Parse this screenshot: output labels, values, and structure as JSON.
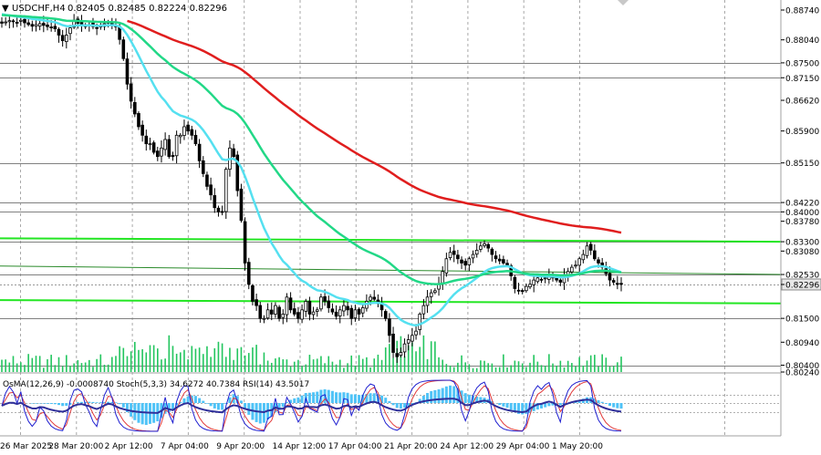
{
  "header": {
    "symbol": "USDCHF,H4",
    "ohlc": "0.82405 0.82485 0.82224 0.82296"
  },
  "indicator_label": "OsMA(12,26,9) -0.0008740  Stoch(5,3,3) 34.6272 40.7384  RSI(14) 43.5017",
  "colors": {
    "background": "#ffffff",
    "grid": "#a9a9a9",
    "candle": "#000000",
    "volume": "#22c55e",
    "ema_fast": "#55e0f0",
    "ema_mid": "#22d887",
    "ema_slow": "#e01e1e",
    "level_green": "#22e622",
    "osma": "#4fc3f7",
    "stoch_main": "#1f1fd0",
    "stoch_signal": "#e23b3b",
    "rsi": "#2f2f9a",
    "axis_text": "#000000"
  },
  "chart_data": {
    "type": "candlestick",
    "symbol": "USDCHF",
    "timeframe": "H4",
    "x_ticks": [
      "26 Mar 2025",
      "28 Mar 20:00",
      "2 Apr 12:00",
      "7 Apr 04:00",
      "9 Apr 20:00",
      "14 Apr 12:00",
      "17 Apr 04:00",
      "21 Apr 20:00",
      "24 Apr 12:00",
      "29 Apr 04:00",
      "1 May 20:00"
    ],
    "y_ticks": [
      "0.88740",
      "0.88040",
      "0.87500",
      "0.87150",
      "0.86620",
      "0.85900",
      "0.85150",
      "0.84220",
      "0.84000",
      "0.83780",
      "0.83300",
      "0.83080",
      "0.82530",
      "0.82296",
      "0.81500",
      "0.80940",
      "0.80400",
      "0.80240"
    ],
    "ylim": [
      0.8024,
      0.8874
    ],
    "horizontal_levels": [
      0.875,
      0.8715,
      0.8515,
      0.8422,
      0.84,
      0.833,
      0.8253,
      0.815,
      0.804
    ],
    "current_price": "0.82296",
    "close_series": [
      0.8843,
      0.8846,
      0.8849,
      0.8847,
      0.8845,
      0.885,
      0.8844,
      0.884,
      0.8836,
      0.884,
      0.8842,
      0.8838,
      0.8835,
      0.8833,
      0.883,
      0.8815,
      0.8802,
      0.8815,
      0.8832,
      0.885,
      0.8843,
      0.884,
      0.8837,
      0.884,
      0.8835,
      0.8832,
      0.8838,
      0.8842,
      0.8845,
      0.8838,
      0.8835,
      0.8805,
      0.876,
      0.87,
      0.866,
      0.863,
      0.86,
      0.858,
      0.856,
      0.856,
      0.854,
      0.853,
      0.855,
      0.857,
      0.853,
      0.853,
      0.858,
      0.858,
      0.86,
      0.859,
      0.858,
      0.856,
      0.852,
      0.849,
      0.846,
      0.844,
      0.841,
      0.84,
      0.84,
      0.85,
      0.855,
      0.853,
      0.845,
      0.838,
      0.828,
      0.823,
      0.819,
      0.818,
      0.815,
      0.815,
      0.817,
      0.816,
      0.818,
      0.815,
      0.816,
      0.82,
      0.817,
      0.816,
      0.815,
      0.817,
      0.819,
      0.816,
      0.8165,
      0.817,
      0.82,
      0.819,
      0.8175,
      0.8165,
      0.8155,
      0.817,
      0.818,
      0.817,
      0.815,
      0.817,
      0.816,
      0.8175,
      0.819,
      0.82,
      0.8195,
      0.8185,
      0.817,
      0.815,
      0.811,
      0.807,
      0.806,
      0.807,
      0.809,
      0.81,
      0.811,
      0.812,
      0.816,
      0.818,
      0.82,
      0.821,
      0.8215,
      0.823,
      0.826,
      0.829,
      0.8305,
      0.83,
      0.829,
      0.828,
      0.8275,
      0.829,
      0.83,
      0.831,
      0.832,
      0.8325,
      0.8315,
      0.83,
      0.829,
      0.8285,
      0.828,
      0.8275,
      0.825,
      0.822,
      0.8215,
      0.8215,
      0.8225,
      0.823,
      0.824,
      0.8245,
      0.824,
      0.8245,
      0.825,
      0.8245,
      0.824,
      0.8235,
      0.825,
      0.826,
      0.827,
      0.8275,
      0.829,
      0.83,
      0.832,
      0.831,
      0.829,
      0.828,
      0.827,
      0.8255,
      0.824,
      0.8235,
      0.823,
      0.823
    ]
  }
}
